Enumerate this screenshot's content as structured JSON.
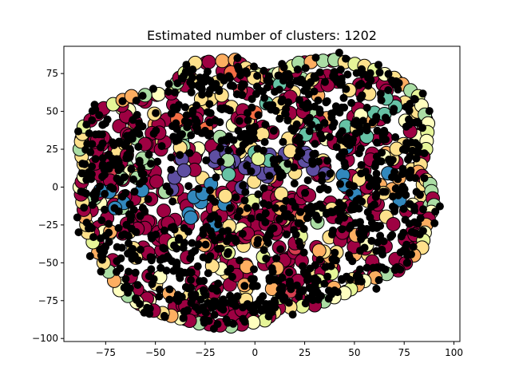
{
  "chart_data": {
    "type": "scatter",
    "title": "Estimated number of clusters: 1202",
    "xlabel": "",
    "ylabel": "",
    "xlim": [
      -96,
      103
    ],
    "ylim": [
      -102,
      93
    ],
    "xticks": [
      -75,
      -50,
      -25,
      0,
      25,
      50,
      75,
      100
    ],
    "xtick_labels": [
      "−75",
      "−50",
      "−25",
      "0",
      "25",
      "50",
      "75",
      "100"
    ],
    "yticks": [
      -100,
      -75,
      -50,
      -25,
      0,
      25,
      50,
      75
    ],
    "ytick_labels": [
      "−100",
      "−75",
      "−50",
      "−25",
      "0",
      "25",
      "50",
      "75"
    ],
    "grid": false,
    "legend": "none",
    "colormap": "Spectral",
    "palette": [
      "#9e0142",
      "#d53e4f",
      "#f46d43",
      "#fdae61",
      "#fee08b",
      "#ffffbf",
      "#e6f598",
      "#abdda4",
      "#66c2a5",
      "#3288bd",
      "#5e4fa2"
    ],
    "noise_color": "#000000",
    "marker_edge_color": "#000000",
    "n_clusters": 1202,
    "shape_outline": [
      [
        -85,
        10
      ],
      [
        -88,
        25
      ],
      [
        -86,
        40
      ],
      [
        -76,
        52
      ],
      [
        -62,
        60
      ],
      [
        -42,
        62
      ],
      [
        -38,
        72
      ],
      [
        -30,
        82
      ],
      [
        -10,
        84
      ],
      [
        -2,
        76
      ],
      [
        5,
        73
      ],
      [
        12,
        75
      ],
      [
        22,
        82
      ],
      [
        40,
        84
      ],
      [
        55,
        80
      ],
      [
        70,
        72
      ],
      [
        82,
        60
      ],
      [
        87,
        42
      ],
      [
        86,
        25
      ],
      [
        82,
        10
      ],
      [
        88,
        2
      ],
      [
        90,
        -12
      ],
      [
        86,
        -25
      ],
      [
        84,
        -40
      ],
      [
        72,
        -55
      ],
      [
        55,
        -62
      ],
      [
        45,
        -70
      ],
      [
        30,
        -78
      ],
      [
        12,
        -80
      ],
      [
        5,
        -88
      ],
      [
        -12,
        -92
      ],
      [
        -28,
        -90
      ],
      [
        -42,
        -85
      ],
      [
        -55,
        -80
      ],
      [
        -68,
        -68
      ],
      [
        -76,
        -50
      ],
      [
        -84,
        -30
      ],
      [
        -86,
        -15
      ],
      [
        -88,
        0
      ]
    ],
    "cluster_regions": [
      {
        "color": "#5e4fa2",
        "center": [
          -20,
          15
        ],
        "spread": [
          12,
          8
        ],
        "count": 14
      },
      {
        "color": "#5e4fa2",
        "center": [
          10,
          12
        ],
        "spread": [
          12,
          8
        ],
        "count": 12
      },
      {
        "color": "#3288bd",
        "center": [
          -25,
          -10
        ],
        "spread": [
          12,
          10
        ],
        "count": 10
      },
      {
        "color": "#3288bd",
        "center": [
          -65,
          -10
        ],
        "spread": [
          8,
          6
        ],
        "count": 5
      },
      {
        "color": "#3288bd",
        "center": [
          55,
          5
        ],
        "spread": [
          10,
          8
        ],
        "count": 6
      },
      {
        "color": "#66c2a5",
        "center": [
          20,
          35
        ],
        "spread": [
          25,
          10
        ],
        "count": 8
      },
      {
        "color": "#66c2a5",
        "center": [
          50,
          55
        ],
        "spread": [
          20,
          12
        ],
        "count": 6
      },
      {
        "color": "#abdda4",
        "center": [
          -55,
          10
        ],
        "spread": [
          18,
          20
        ],
        "count": 8
      },
      {
        "color": "#e6f598",
        "center": [
          10,
          -40
        ],
        "spread": [
          30,
          25
        ],
        "count": 10
      },
      {
        "color": "#fee08b",
        "center": [
          0,
          40
        ],
        "spread": [
          40,
          35
        ],
        "count": 14
      },
      {
        "color": "#fdae61",
        "center": [
          30,
          -60
        ],
        "spread": [
          30,
          20
        ],
        "count": 6
      },
      {
        "color": "#f46d43",
        "center": [
          -40,
          50
        ],
        "spread": [
          25,
          20
        ],
        "count": 4
      }
    ],
    "noise_regions": [
      {
        "center": [
          -70,
          10
        ],
        "spread": [
          12,
          30
        ],
        "count": 120
      },
      {
        "center": [
          -45,
          -55
        ],
        "spread": [
          20,
          15
        ],
        "count": 110
      },
      {
        "center": [
          -15,
          40
        ],
        "spread": [
          22,
          18
        ],
        "count": 110
      },
      {
        "center": [
          40,
          40
        ],
        "spread": [
          25,
          20
        ],
        "count": 120
      },
      {
        "center": [
          55,
          -35
        ],
        "spread": [
          20,
          20
        ],
        "count": 110
      },
      {
        "center": [
          5,
          -20
        ],
        "spread": [
          25,
          15
        ],
        "count": 90
      },
      {
        "center": [
          -20,
          70
        ],
        "spread": [
          15,
          8
        ],
        "count": 45
      },
      {
        "center": [
          35,
          70
        ],
        "spread": [
          20,
          8
        ],
        "count": 45
      },
      {
        "center": [
          70,
          20
        ],
        "spread": [
          12,
          20
        ],
        "count": 70
      },
      {
        "center": [
          -10,
          -80
        ],
        "spread": [
          25,
          8
        ],
        "count": 70
      },
      {
        "center": [
          20,
          -65
        ],
        "spread": [
          20,
          10
        ],
        "count": 60
      }
    ]
  }
}
